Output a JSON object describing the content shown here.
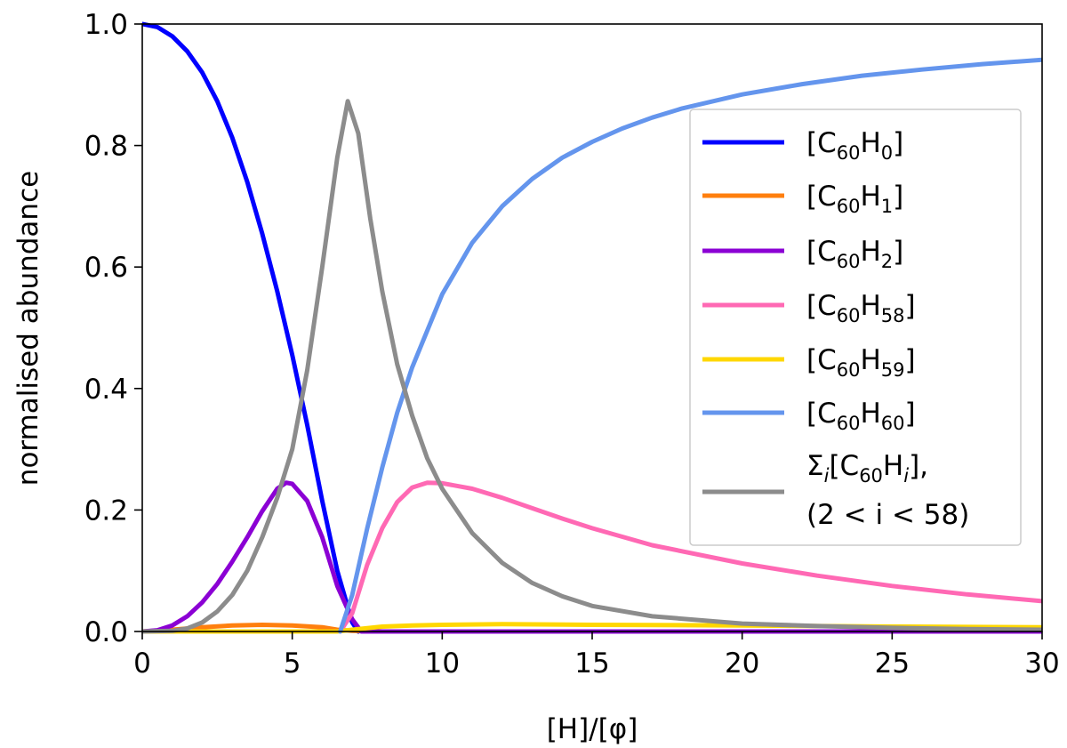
{
  "chart_data": {
    "type": "line",
    "xlabel": "[H]/[φ]",
    "ylabel": "normalised abundance",
    "xlim": [
      0,
      30
    ],
    "ylim": [
      0,
      1.0
    ],
    "xticks": [
      "0",
      "5",
      "10",
      "15",
      "20",
      "25",
      "30"
    ],
    "yticks": [
      "0.0",
      "0.2",
      "0.4",
      "0.6",
      "0.8",
      "1.0"
    ],
    "grid": false,
    "legend_position": "upper-right",
    "series": [
      {
        "name": "[C60H0]",
        "label_main": "[C",
        "sub1": "60",
        "label_mid": "H",
        "sub2": "0",
        "label_end": "]",
        "color": "#0000ff",
        "x": [
          0,
          0.5,
          1,
          1.5,
          2,
          2.5,
          3,
          3.5,
          4,
          4.5,
          5,
          5.5,
          6,
          6.5,
          7,
          7.2
        ],
        "y": [
          1.0,
          0.995,
          0.98,
          0.955,
          0.92,
          0.873,
          0.813,
          0.74,
          0.655,
          0.56,
          0.455,
          0.34,
          0.215,
          0.1,
          0.015,
          0.0
        ]
      },
      {
        "name": "[C60H1]",
        "label_main": "[C",
        "sub1": "60",
        "label_mid": "H",
        "sub2": "1",
        "label_end": "]",
        "color": "#ff7f0e",
        "x": [
          0,
          1,
          2,
          3,
          4,
          5,
          6,
          6.5,
          7,
          8,
          30
        ],
        "y": [
          0,
          0.003,
          0.007,
          0.01,
          0.011,
          0.01,
          0.007,
          0.003,
          0.001,
          0.0,
          0.0
        ]
      },
      {
        "name": "[C60H2]",
        "label_main": "[C",
        "sub1": "60",
        "label_mid": "H",
        "sub2": "2",
        "label_end": "]",
        "color": "#8b00d4",
        "x": [
          0,
          0.5,
          1,
          1.5,
          2,
          2.5,
          3,
          3.5,
          4,
          4.5,
          4.8,
          5,
          5.5,
          6,
          6.5,
          7,
          7.3,
          8,
          30
        ],
        "y": [
          0,
          0.002,
          0.01,
          0.025,
          0.048,
          0.078,
          0.115,
          0.155,
          0.198,
          0.235,
          0.245,
          0.243,
          0.215,
          0.155,
          0.075,
          0.02,
          0.0,
          0.0,
          0.0
        ]
      },
      {
        "name": "[C60H58]",
        "label_main": "[C",
        "sub1": "60",
        "label_mid": "H",
        "sub2": "58",
        "label_end": "]",
        "color": "#ff69b4",
        "x": [
          6.6,
          7,
          7.5,
          8,
          8.5,
          9,
          9.5,
          10,
          11,
          12,
          13,
          14,
          15,
          17,
          20,
          22.5,
          25,
          27.5,
          30
        ],
        "y": [
          0.0,
          0.03,
          0.11,
          0.17,
          0.213,
          0.237,
          0.245,
          0.244,
          0.235,
          0.22,
          0.203,
          0.186,
          0.17,
          0.142,
          0.112,
          0.092,
          0.075,
          0.061,
          0.05
        ]
      },
      {
        "name": "[C60H59]",
        "label_main": "[C",
        "sub1": "60",
        "label_mid": "H",
        "sub2": "59",
        "label_end": "]",
        "color": "#ffd700",
        "x": [
          0,
          6.5,
          7,
          8,
          9,
          10,
          12,
          15,
          20,
          25,
          30
        ],
        "y": [
          0,
          0.0,
          0.003,
          0.008,
          0.01,
          0.011,
          0.012,
          0.011,
          0.01,
          0.008,
          0.007
        ]
      },
      {
        "name": "[C60H60]",
        "label_main": "[C",
        "sub1": "60",
        "label_mid": "H",
        "sub2": "60",
        "label_end": "]",
        "color": "#6495ed",
        "x": [
          6.6,
          7,
          7.5,
          8,
          8.5,
          9,
          10,
          11,
          12,
          13,
          14,
          15,
          16,
          17,
          18,
          20,
          22,
          24,
          26,
          28,
          30
        ],
        "y": [
          0.0,
          0.06,
          0.17,
          0.27,
          0.36,
          0.435,
          0.555,
          0.64,
          0.7,
          0.745,
          0.78,
          0.806,
          0.828,
          0.846,
          0.861,
          0.884,
          0.901,
          0.915,
          0.925,
          0.934,
          0.941
        ]
      },
      {
        "name": "Σi[C60Hi], (2 < i < 58)",
        "label_line1": "Σ",
        "label_line1_sub": "i",
        "label_line1_rest": "[C",
        "label_line1_sub2": "60",
        "label_line1_h": "H",
        "label_line1_sub3": "i",
        "label_line1_end": "],",
        "label_line2": "(2 < i < 58)",
        "color": "#8c8c8c",
        "x": [
          0,
          1,
          1.5,
          2,
          2.5,
          3,
          3.5,
          4,
          4.5,
          5,
          5.5,
          6,
          6.5,
          6.85,
          7.2,
          7.6,
          8,
          8.5,
          9,
          9.5,
          10,
          11,
          12,
          13,
          14,
          15,
          17,
          20,
          22.5,
          25,
          27.5,
          30
        ],
        "y": [
          0,
          0.001,
          0.005,
          0.015,
          0.033,
          0.06,
          0.1,
          0.155,
          0.22,
          0.3,
          0.43,
          0.6,
          0.78,
          0.873,
          0.82,
          0.68,
          0.56,
          0.44,
          0.355,
          0.285,
          0.235,
          0.162,
          0.113,
          0.08,
          0.058,
          0.042,
          0.025,
          0.013,
          0.009,
          0.006,
          0.004,
          0.003
        ]
      }
    ]
  }
}
